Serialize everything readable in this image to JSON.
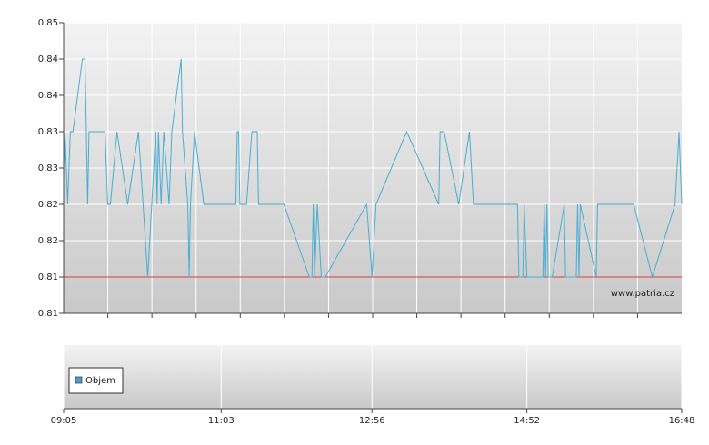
{
  "chart_data": [
    {
      "type": "line",
      "color": "#4aaed3",
      "x": [
        545,
        546,
        548,
        550,
        552,
        559,
        561,
        563,
        564,
        576,
        578,
        580,
        585,
        593,
        601,
        608,
        614,
        615,
        616,
        618,
        620,
        624,
        626,
        633,
        634,
        638,
        639,
        640,
        643,
        650,
        674,
        675,
        676,
        677,
        682,
        686,
        690,
        691,
        710,
        729,
        731,
        732,
        733,
        735,
        738,
        741,
        772,
        776,
        779,
        802,
        826,
        827,
        830,
        841,
        849,
        852,
        885,
        886,
        889,
        890,
        892,
        904,
        905,
        906,
        907,
        908,
        911,
        920,
        921,
        929,
        930,
        931,
        932,
        944,
        945,
        972,
        986,
        1003,
        1006,
        1008
      ],
      "values": [
        0.83,
        0.835,
        0.825,
        0.835,
        0.835,
        0.845,
        0.845,
        0.825,
        0.835,
        0.835,
        0.825,
        0.825,
        0.835,
        0.825,
        0.835,
        0.815,
        0.835,
        0.825,
        0.835,
        0.825,
        0.835,
        0.825,
        0.835,
        0.845,
        0.835,
        0.825,
        0.815,
        0.825,
        0.835,
        0.825,
        0.825,
        0.835,
        0.835,
        0.825,
        0.825,
        0.835,
        0.835,
        0.825,
        0.825,
        0.815,
        0.815,
        0.825,
        0.815,
        0.825,
        0.815,
        0.815,
        0.825,
        0.815,
        0.825,
        0.835,
        0.825,
        0.835,
        0.835,
        0.825,
        0.835,
        0.825,
        0.825,
        0.815,
        0.815,
        0.825,
        0.815,
        0.815,
        0.825,
        0.815,
        0.825,
        0.815,
        0.815,
        0.825,
        0.815,
        0.815,
        0.825,
        0.815,
        0.825,
        0.815,
        0.825,
        0.825,
        0.815,
        0.825,
        0.835,
        0.825
      ],
      "reference_line": {
        "value": 0.815,
        "color": "#e03a3a"
      },
      "annotation": "www.patria.cz",
      "xlim": [
        545,
        1008
      ],
      "xticks": [
        {
          "value": 545,
          "label": "09:05"
        },
        {
          "value": 663,
          "label": "11:03"
        },
        {
          "value": 776,
          "label": "12:56"
        },
        {
          "value": 892,
          "label": "14:52"
        },
        {
          "value": 1008,
          "label": "16:48"
        }
      ],
      "ylim": [
        0.81,
        0.85
      ],
      "yticks": [
        {
          "value": 0.81,
          "label": "0,81"
        },
        {
          "value": 0.815,
          "label": "0,81"
        },
        {
          "value": 0.82,
          "label": "0,82"
        },
        {
          "value": 0.825,
          "label": "0,82"
        },
        {
          "value": 0.83,
          "label": "0,83"
        },
        {
          "value": 0.835,
          "label": "0,83"
        },
        {
          "value": 0.84,
          "label": "0,84"
        },
        {
          "value": 0.845,
          "label": "0,84"
        },
        {
          "value": 0.85,
          "label": "0,85"
        }
      ],
      "grid": true
    },
    {
      "type": "bar",
      "series": [
        {
          "name": "Objem",
          "color": "#4a9fd5",
          "values": []
        }
      ],
      "grid": true
    }
  ]
}
